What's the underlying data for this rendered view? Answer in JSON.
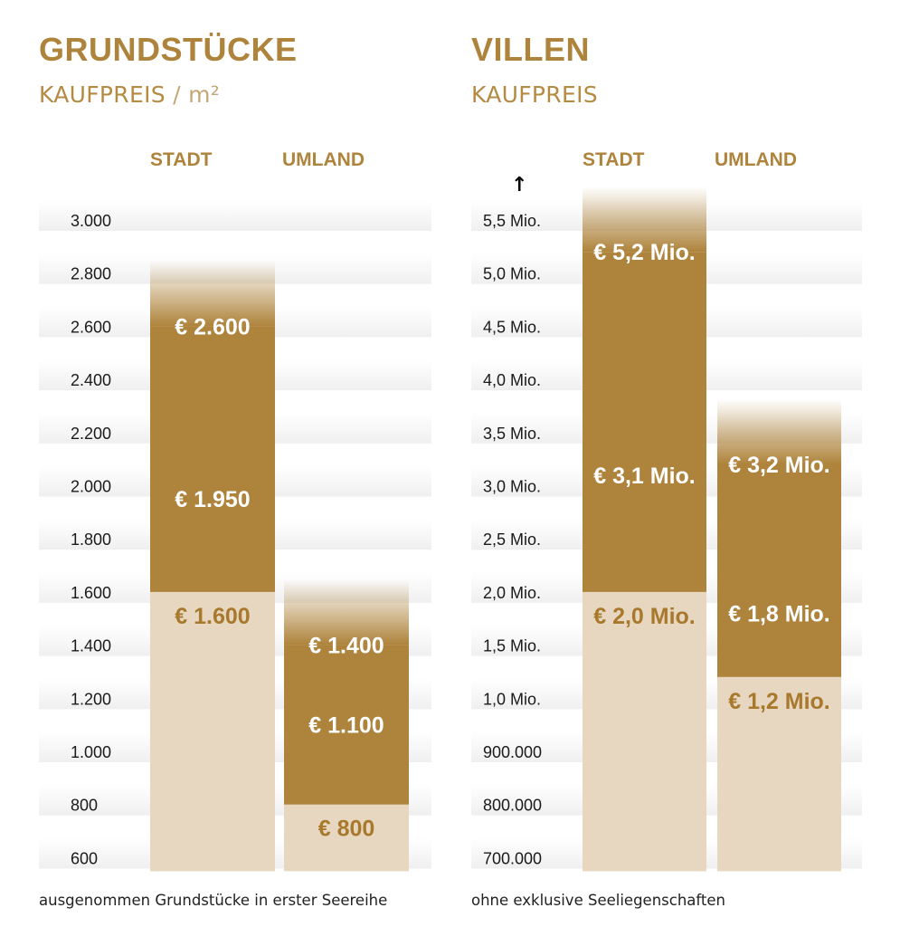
{
  "colors": {
    "gold": "#ae833b",
    "beige": "#e7d7c1",
    "label_light": "#ffffff",
    "label_dark": "#a8792c"
  },
  "chart_data": [
    {
      "type": "bar",
      "title": "GRUNDSTÜCKE",
      "subtitle_main": "KAUFPREIS",
      "subtitle_sep": " / ",
      "subtitle_unit": "m²",
      "categories": [
        "STADT",
        "UMLAND"
      ],
      "ytick_labels": [
        "3.000",
        "2.800",
        "2.600",
        "2.400",
        "2.200",
        "2.000",
        "1.800",
        "1.600",
        "1.400",
        "1.200",
        "1.000",
        "800",
        "600"
      ],
      "ylim": [
        600,
        3000
      ],
      "bars": [
        {
          "category": "STADT",
          "min": 600,
          "low": 1600,
          "avg": 1950,
          "high": 2600,
          "labels": {
            "low": "€ 1.600",
            "avg": "€ 1.950",
            "high": "€ 2.600"
          }
        },
        {
          "category": "UMLAND",
          "min": 600,
          "low": 800,
          "avg": 1100,
          "high": 1400,
          "labels": {
            "low": "€ 800",
            "avg": "€ 1.100",
            "high": "€ 1.400"
          }
        }
      ],
      "footnote": "ausgenommen Grundstücke in erster Seereihe"
    },
    {
      "type": "bar",
      "title": "VILLEN",
      "subtitle_main": "KAUFPREIS",
      "axis_arrow": "↑",
      "categories": [
        "STADT",
        "UMLAND"
      ],
      "ytick_labels": [
        "5,5 Mio.",
        "5,0 Mio.",
        "4,5 Mio.",
        "4,0 Mio.",
        "3,5 Mio.",
        "3,0 Mio.",
        "2,5 Mio.",
        "2,0 Mio.",
        "1,5 Mio.",
        "1,0 Mio.",
        "900.000",
        "800.000",
        "700.000"
      ],
      "y_scale": "non-linear (steps of 0,5 Mio. above 1,0 Mio.; steps of 100.000 below)",
      "ylim": [
        700000,
        5500000
      ],
      "bars": [
        {
          "category": "STADT",
          "min": 700000,
          "low": 2000000,
          "avg": 3100000,
          "high": 5200000,
          "labels": {
            "low": "€ 2,0 Mio.",
            "avg": "€ 3,1 Mio.",
            "high": "€ 5,2 Mio."
          }
        },
        {
          "category": "UMLAND",
          "min": 700000,
          "low": 1200000,
          "avg": 1800000,
          "high": 3200000,
          "labels": {
            "low": "€ 1,2 Mio.",
            "avg": "€ 1,8 Mio.",
            "high": "€ 3,2 Mio."
          }
        }
      ],
      "footnote": "ohne exklusive Seeliegenschaften"
    }
  ]
}
